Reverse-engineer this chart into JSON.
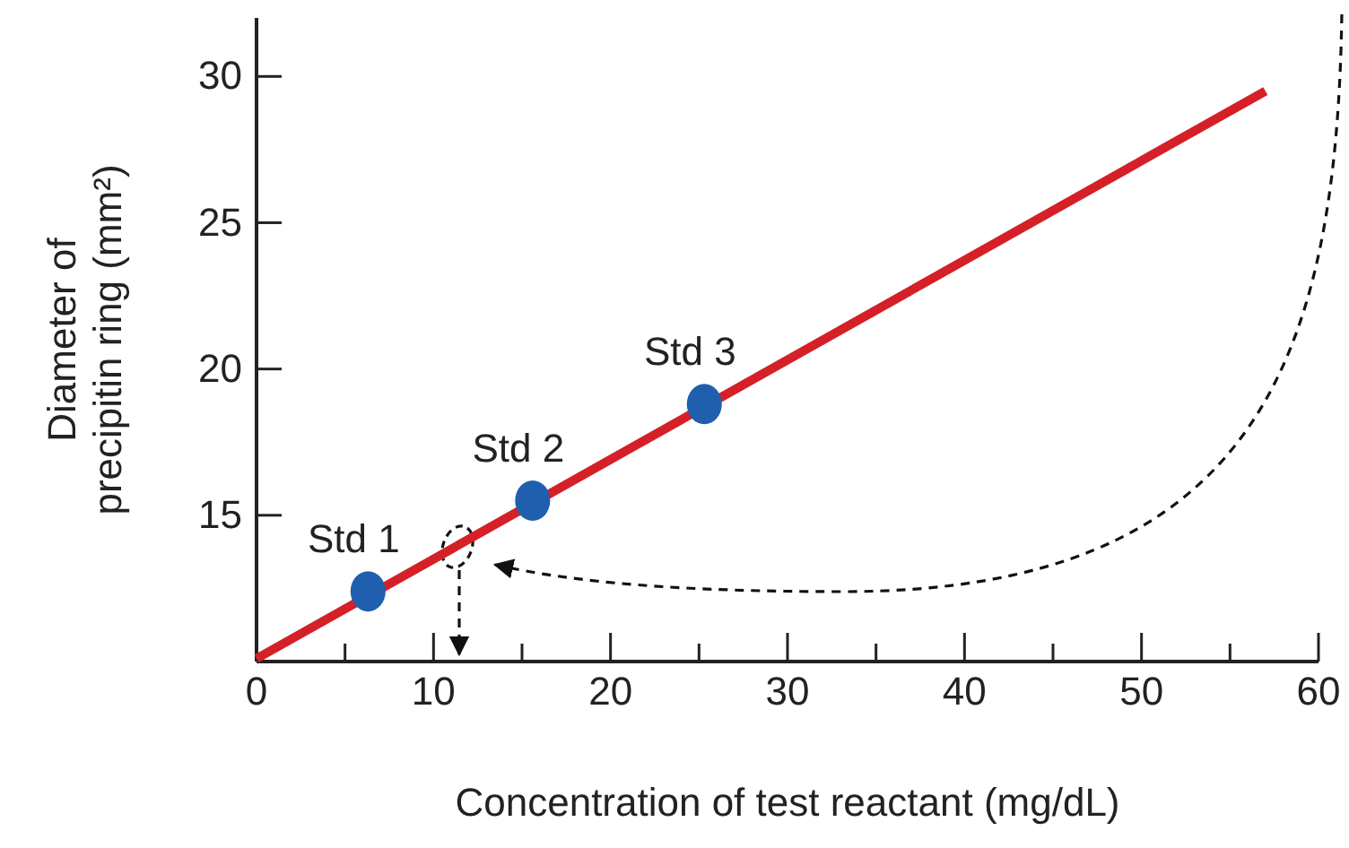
{
  "chart_data": {
    "type": "line",
    "xlabel": "Concentration of test reactant (mg/dL)",
    "ylabel": "Diameter of precipitin ring (mm²)",
    "xlim": [
      0,
      60
    ],
    "ylim": [
      10,
      32
    ],
    "xticks": [
      0,
      {
        "value": 5,
        "label": null
      },
      10,
      {
        "value": 15,
        "label": null
      },
      20,
      {
        "value": 25,
        "label": null
      },
      30,
      {
        "value": 35,
        "label": null
      },
      40,
      {
        "value": 45,
        "label": null
      },
      50,
      {
        "value": 55,
        "label": null
      },
      60
    ],
    "yticks": [
      15,
      20,
      25,
      30
    ],
    "grid": false,
    "series": [
      {
        "color": "#d42027",
        "x": [
          0,
          57
        ],
        "values": [
          10.1,
          29.5
        ]
      },
      {
        "type": "scatter",
        "color": "#1f5fae",
        "x": [
          6.3,
          15.6,
          25.3
        ],
        "values": [
          12.4,
          15.5,
          18.8
        ],
        "marker": "circle"
      }
    ],
    "annotations": [
      {
        "text": "Std 1",
        "x": 6.3,
        "y": 12.4
      },
      {
        "text": "Std 2",
        "x": 15.6,
        "y": 15.5
      },
      {
        "text": "Std 3",
        "x": 25.3,
        "y": 18.8
      }
    ]
  }
}
